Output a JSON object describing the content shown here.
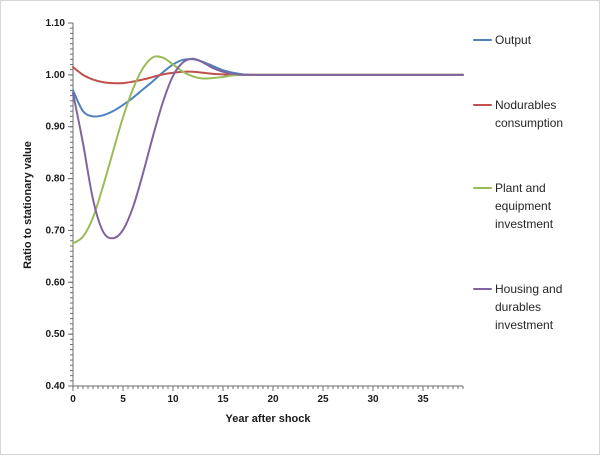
{
  "chart_data": {
    "type": "line",
    "title": "",
    "xlabel": "Year after shock",
    "ylabel": "Ratio to stationary value",
    "xlim": [
      0,
      39
    ],
    "ylim": [
      0.4,
      1.1
    ],
    "x_ticks": [
      0,
      5,
      10,
      15,
      20,
      25,
      30,
      35
    ],
    "x_tick_labels": [
      "0",
      "5",
      "10",
      "15",
      "20",
      "25",
      "30",
      "35"
    ],
    "y_ticks": [
      0.4,
      0.5,
      0.6,
      0.7,
      0.8,
      0.9,
      1.0,
      1.1
    ],
    "y_tick_labels": [
      "0.40",
      "0.50",
      "0.60",
      "0.70",
      "0.80",
      "0.90",
      "1.00",
      "1.10"
    ],
    "x_minor_step": 0.5,
    "y_minor_step": 0.01,
    "grid": false,
    "legend_position": "right",
    "axis_color": "#6e6e6e",
    "text_color": "#1a1a1a",
    "x": [
      0,
      1,
      2,
      3,
      4,
      5,
      6,
      7,
      8,
      9,
      10,
      11,
      12,
      13,
      14,
      15,
      16,
      17,
      18,
      19,
      20,
      21,
      22,
      23,
      24,
      25,
      26,
      27,
      28,
      29,
      30,
      31,
      32,
      33,
      34,
      35,
      36,
      37,
      38,
      39
    ],
    "series": [
      {
        "name": "Output",
        "color": "#4F81BD",
        "values": [
          0.97,
          0.93,
          0.92,
          0.922,
          0.93,
          0.942,
          0.956,
          0.972,
          0.988,
          1.005,
          1.02,
          1.029,
          1.03,
          1.025,
          1.017,
          1.009,
          1.004,
          1.001,
          1.0,
          1.0,
          1.0,
          1.0,
          1.0,
          1.0,
          1.0,
          1.0,
          1.0,
          1.0,
          1.0,
          1.0,
          1.0,
          1.0,
          1.0,
          1.0,
          1.0,
          1.0,
          1.0,
          1.0,
          1.0,
          1.0
        ]
      },
      {
        "name": "Nodurables consumption",
        "color": "#C0504D",
        "values": [
          1.015,
          1.0,
          0.991,
          0.986,
          0.984,
          0.984,
          0.987,
          0.991,
          0.996,
          1.001,
          1.004,
          1.006,
          1.006,
          1.004,
          1.002,
          1.001,
          1.0,
          1.0,
          1.0,
          1.0,
          1.0,
          1.0,
          1.0,
          1.0,
          1.0,
          1.0,
          1.0,
          1.0,
          1.0,
          1.0,
          1.0,
          1.0,
          1.0,
          1.0,
          1.0,
          1.0,
          1.0,
          1.0,
          1.0,
          1.0
        ]
      },
      {
        "name": "Plant and equipment investment",
        "color": "#9BBB59",
        "values": [
          0.675,
          0.688,
          0.725,
          0.785,
          0.852,
          0.918,
          0.973,
          1.013,
          1.034,
          1.033,
          1.02,
          1.006,
          0.997,
          0.993,
          0.994,
          0.996,
          0.999,
          1.0,
          1.0,
          1.0,
          1.0,
          1.0,
          1.0,
          1.0,
          1.0,
          1.0,
          1.0,
          1.0,
          1.0,
          1.0,
          1.0,
          1.0,
          1.0,
          1.0,
          1.0,
          1.0,
          1.0,
          1.0,
          1.0,
          1.0
        ]
      },
      {
        "name": "Housing and durables investment",
        "color": "#8064A2",
        "values": [
          0.965,
          0.868,
          0.76,
          0.698,
          0.685,
          0.701,
          0.745,
          0.81,
          0.882,
          0.948,
          0.998,
          1.024,
          1.031,
          1.024,
          1.013,
          1.006,
          1.002,
          1.0,
          1.0,
          1.0,
          1.0,
          1.0,
          1.0,
          1.0,
          1.0,
          1.0,
          1.0,
          1.0,
          1.0,
          1.0,
          1.0,
          1.0,
          1.0,
          1.0,
          1.0,
          1.0,
          1.0,
          1.0,
          1.0,
          1.0
        ]
      }
    ]
  }
}
